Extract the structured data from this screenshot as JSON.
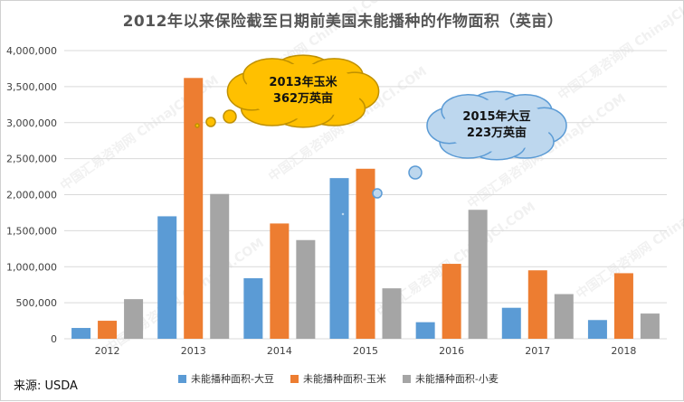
{
  "title": "2012年以来保险截至日期前美国未能播种的作物面积（英亩）",
  "source": "来源:  USDA",
  "watermark": "中国汇易咨询网 ChinaJCI.COM",
  "chart_data": {
    "type": "bar",
    "categories": [
      "2012",
      "2013",
      "2014",
      "2015",
      "2016",
      "2017",
      "2018"
    ],
    "series": [
      {
        "name": "未能播种面积-大豆",
        "color": "#5b9bd5",
        "values": [
          150000,
          1700000,
          840000,
          2230000,
          230000,
          430000,
          260000
        ]
      },
      {
        "name": "未能播种面积-玉米",
        "color": "#ed7d31",
        "values": [
          250000,
          3620000,
          1600000,
          2360000,
          1040000,
          950000,
          910000
        ]
      },
      {
        "name": "未能播种面积-小麦",
        "color": "#a5a5a5",
        "values": [
          550000,
          2010000,
          1370000,
          700000,
          1790000,
          620000,
          350000
        ]
      }
    ],
    "ylim": [
      0,
      4000000
    ],
    "yticks": [
      0,
      500000,
      1000000,
      1500000,
      2000000,
      2500000,
      3000000,
      3500000,
      4000000
    ],
    "ytick_labels": [
      "0",
      "500,000",
      "1,000,000",
      "1,500,000",
      "2,000,000",
      "2,500,000",
      "3,000,000",
      "3,500,000",
      "4,000,000"
    ],
    "grid": true,
    "legend_position": "bottom",
    "annotations": [
      {
        "line1": "2013年玉米",
        "line2": "362万英亩",
        "fill": "#ffc000",
        "stroke": "#bf9000"
      },
      {
        "line1": "2015年大豆",
        "line2": "223万英亩",
        "fill": "#bdd7ee",
        "stroke": "#5b9bd5"
      }
    ]
  }
}
